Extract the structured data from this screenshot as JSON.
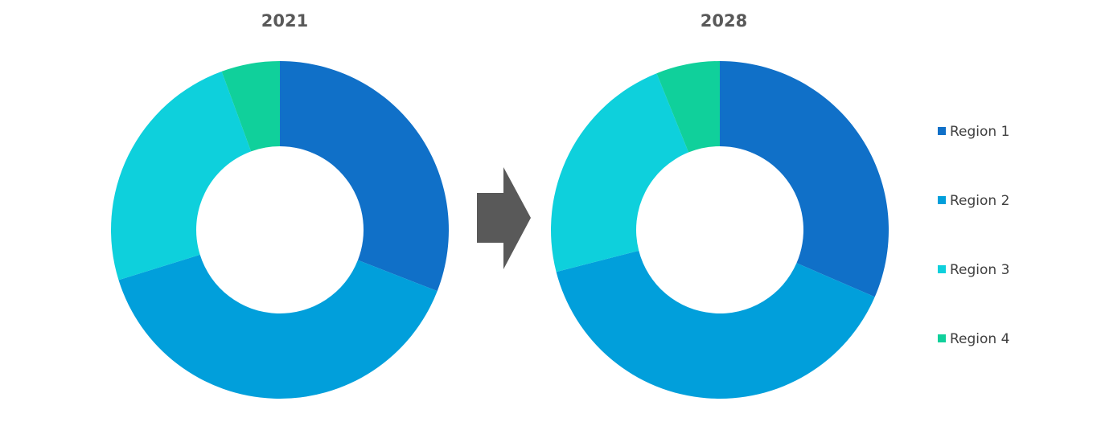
{
  "colors": {
    "region_1": "#1070C8",
    "region_2": "#019FDB",
    "region_3": "#0ED0DC",
    "region_4": "#10D09B",
    "arrow": "#595959",
    "title": "#595959",
    "legend_text": "#404040"
  },
  "icons": {
    "arrow": "right-arrow-icon"
  },
  "chart_data": [
    {
      "type": "donut",
      "title": "2021",
      "categories": [
        "Region 1",
        "Region 2",
        "Region 3",
        "Region 4"
      ],
      "values": [
        30.9,
        39.3,
        24.2,
        5.6
      ],
      "unit": "percent share (estimated)",
      "legend": "right"
    },
    {
      "type": "donut",
      "title": "2028",
      "categories": [
        "Region 1",
        "Region 2",
        "Region 3",
        "Region 4"
      ],
      "values": [
        31.5,
        39.5,
        22.9,
        6.1
      ],
      "unit": "percent share (estimated)",
      "legend": "right"
    }
  ],
  "legend": {
    "items": [
      {
        "label": "Region 1",
        "color": "#1070C8"
      },
      {
        "label": "Region 2",
        "color": "#019FDB"
      },
      {
        "label": "Region 3",
        "color": "#0ED0DC"
      },
      {
        "label": "Region 4",
        "color": "#10D09B"
      }
    ]
  }
}
